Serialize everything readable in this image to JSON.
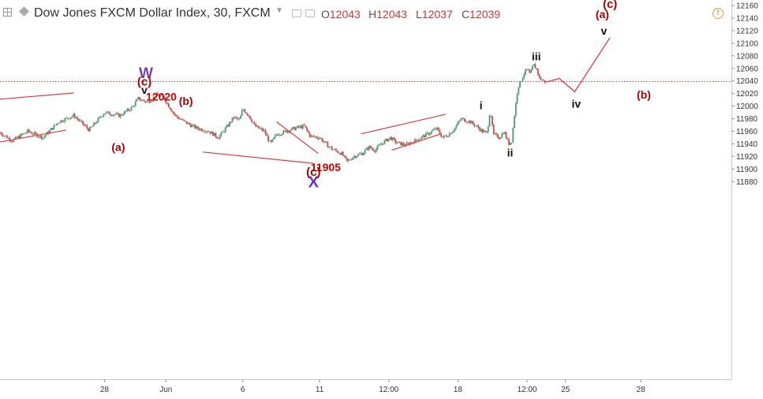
{
  "header": {
    "symbol_title": "Dow Jones FXCM Dollar Index, 30, FXCM",
    "ohlc": [
      {
        "key": "O",
        "value": "12043"
      },
      {
        "key": "H",
        "value": "12043"
      },
      {
        "key": "L",
        "value": "12037"
      },
      {
        "key": "C",
        "value": "12039"
      }
    ],
    "alert_icon": "alert-icon"
  },
  "chart_data": {
    "type": "candlestick",
    "instrument": "Dow Jones FXCM Dollar Index",
    "timeframe": "30",
    "ylim": [
      11865,
      12165
    ],
    "y_ticks": [
      12160,
      12140,
      12120,
      12100,
      12080,
      12060,
      12040,
      12020,
      12000,
      11980,
      11960,
      11940,
      11920,
      11900,
      11880
    ],
    "x_ticks": [
      {
        "label": "28",
        "day": 0
      },
      {
        "label": "Jun",
        "day": 4
      },
      {
        "label": "6",
        "day": 9
      },
      {
        "label": "11",
        "day": 14
      },
      {
        "label": "12:00",
        "day": 18.5
      },
      {
        "label": "18",
        "day": 23
      },
      {
        "label": "12:00",
        "day": 27.5
      },
      {
        "label": "25",
        "day": 30
      },
      {
        "label": "28",
        "day": 34.9
      }
    ],
    "xlim": [
      -6.8,
      40.8
    ],
    "current_price": 12039,
    "price_path": [
      [
        -6.8,
        11958
      ],
      [
        -6.0,
        11945
      ],
      [
        -5.0,
        11960
      ],
      [
        -4.0,
        11950
      ],
      [
        -3.0,
        11975
      ],
      [
        -2.0,
        11985
      ],
      [
        -1.0,
        11962
      ],
      [
        0.0,
        11990
      ],
      [
        1.0,
        11985
      ],
      [
        1.8,
        11998
      ],
      [
        2.2,
        12012
      ],
      [
        2.8,
        12006
      ],
      [
        3.4,
        12018
      ],
      [
        3.8,
        12015
      ],
      [
        4.2,
        12000
      ],
      [
        4.6,
        11985
      ],
      [
        5.2,
        11975
      ],
      [
        6.0,
        11965
      ],
      [
        6.8,
        11960
      ],
      [
        7.4,
        11950
      ],
      [
        8.0,
        11968
      ],
      [
        8.4,
        11982
      ],
      [
        8.8,
        11978
      ],
      [
        9.0,
        11996
      ],
      [
        9.4,
        11985
      ],
      [
        9.8,
        11968
      ],
      [
        10.4,
        11960
      ],
      [
        10.8,
        11940
      ],
      [
        11.2,
        11955
      ],
      [
        11.8,
        11960
      ],
      [
        12.4,
        11965
      ],
      [
        13.0,
        11968
      ],
      [
        13.4,
        11952
      ],
      [
        14.0,
        11950
      ],
      [
        14.4,
        11940
      ],
      [
        14.8,
        11932
      ],
      [
        15.4,
        11925
      ],
      [
        15.8,
        11912
      ],
      [
        16.2,
        11920
      ],
      [
        16.8,
        11925
      ],
      [
        17.2,
        11935
      ],
      [
        17.6,
        11930
      ],
      [
        18.0,
        11940
      ],
      [
        18.6,
        11950
      ],
      [
        19.0,
        11942
      ],
      [
        19.6,
        11938
      ],
      [
        20.2,
        11945
      ],
      [
        20.6,
        11950
      ],
      [
        21.2,
        11958
      ],
      [
        21.6,
        11965
      ],
      [
        22.0,
        11950
      ],
      [
        22.4,
        11955
      ],
      [
        22.8,
        11965
      ],
      [
        23.2,
        11980
      ],
      [
        23.8,
        11975
      ],
      [
        24.2,
        11968
      ],
      [
        24.6,
        11960
      ],
      [
        24.9,
        11957
      ],
      [
        25.1,
        11995
      ],
      [
        25.3,
        11955
      ],
      [
        25.7,
        11950
      ],
      [
        26.0,
        11960
      ],
      [
        26.3,
        11940
      ],
      [
        26.5,
        11945
      ],
      [
        26.7,
        11990
      ],
      [
        26.9,
        12030
      ],
      [
        27.1,
        12040
      ],
      [
        27.3,
        12052
      ],
      [
        27.5,
        12058
      ],
      [
        27.7,
        12050
      ],
      [
        27.9,
        12066
      ],
      [
        28.1,
        12060
      ],
      [
        28.3,
        12045
      ],
      [
        28.5,
        12041
      ],
      [
        28.7,
        12039
      ]
    ],
    "projection": [
      [
        28.7,
        12038
      ],
      [
        29.6,
        12044
      ],
      [
        30.6,
        12023
      ],
      [
        32.9,
        12109
      ]
    ],
    "channels": [
      [
        [
          -6.8,
          12011
        ],
        [
          -2.0,
          12021
        ]
      ],
      [
        [
          -6.8,
          11943
        ],
        [
          -2.5,
          11962
        ]
      ],
      [
        [
          6.4,
          11927
        ],
        [
          13.6,
          11909
        ]
      ],
      [
        [
          11.2,
          11975
        ],
        [
          13.9,
          11925
        ]
      ],
      [
        [
          16.7,
          11956
        ],
        [
          22.2,
          11987
        ]
      ],
      [
        [
          18.7,
          11930
        ],
        [
          21.8,
          11955
        ]
      ]
    ],
    "wave_labels": [
      {
        "text": "(c)",
        "day": 32.9,
        "price": 12163,
        "color": "#aa0000",
        "size": 15
      },
      {
        "text": "(a)",
        "day": 32.4,
        "price": 12146,
        "color": "#aa0000",
        "size": 14
      },
      {
        "text": "v",
        "day": 32.5,
        "price": 12120,
        "color": "#111111",
        "size": 14
      },
      {
        "text": "iii",
        "day": 28.1,
        "price": 12079,
        "color": "#111111",
        "size": 14
      },
      {
        "text": "iv",
        "day": 30.7,
        "price": 12004,
        "color": "#111111",
        "size": 14
      },
      {
        "text": "(b)",
        "day": 35.1,
        "price": 12018,
        "color": "#aa0000",
        "size": 14
      },
      {
        "text": "i",
        "day": 24.5,
        "price": 12001,
        "color": "#111111",
        "size": 14
      },
      {
        "text": "ii",
        "day": 26.4,
        "price": 11926,
        "color": "#111111",
        "size": 14
      },
      {
        "text": "W",
        "day": 2.7,
        "price": 12053,
        "color": "#7b3fa0",
        "size": 19
      },
      {
        "text": "(c)",
        "day": 2.6,
        "price": 12039,
        "color": "#aa0000",
        "size": 15
      },
      {
        "text": "v",
        "day": 2.6,
        "price": 12026,
        "color": "#111111",
        "size": 14
      },
      {
        "text": "12020",
        "day": 3.7,
        "price": 12015,
        "color": "#cc0000",
        "size": 14
      },
      {
        "text": "(b)",
        "day": 5.3,
        "price": 12008,
        "color": "#aa0000",
        "size": 14
      },
      {
        "text": "(a)",
        "day": 0.9,
        "price": 11935,
        "color": "#aa0000",
        "size": 14
      },
      {
        "text": "11905",
        "day": 14.4,
        "price": 11903,
        "color": "#cc0000",
        "size": 14
      },
      {
        "text": "(c)",
        "day": 13.6,
        "price": 11896,
        "color": "#aa0000",
        "size": 15
      },
      {
        "text": "X",
        "day": 13.6,
        "price": 11880,
        "color": "#6a33cc",
        "size": 20
      }
    ]
  }
}
